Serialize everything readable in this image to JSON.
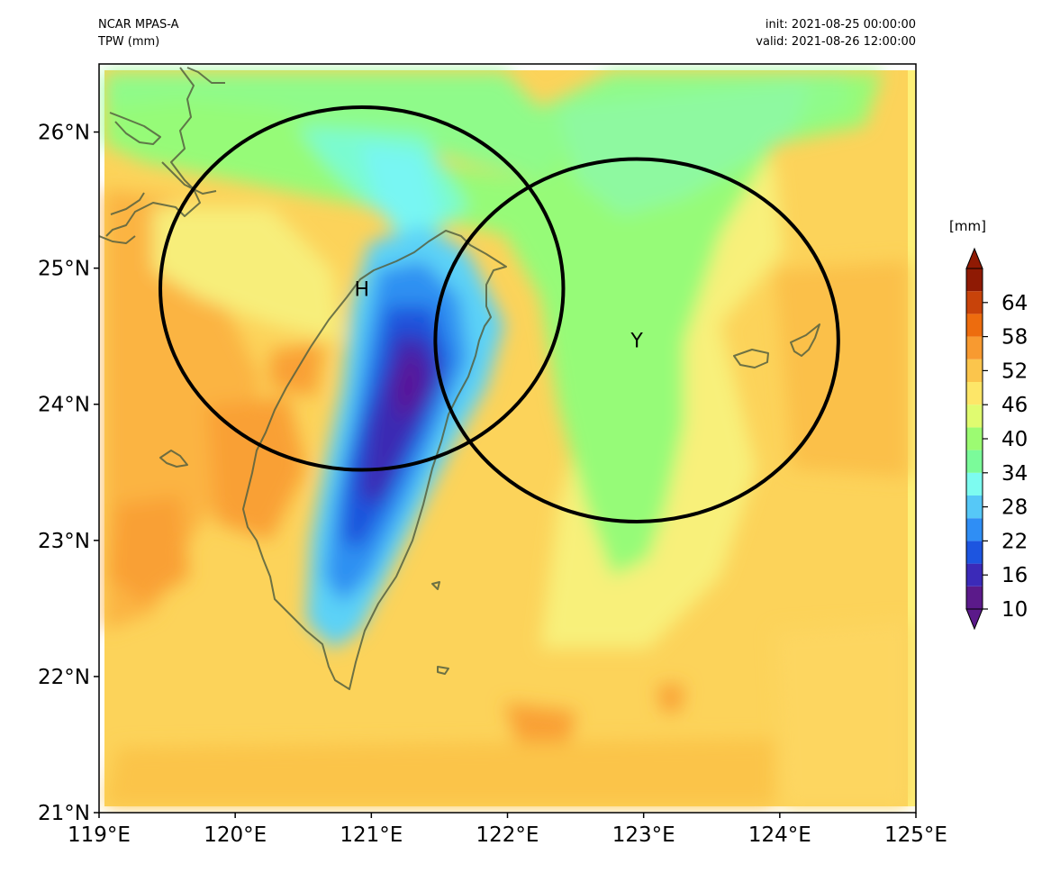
{
  "header": {
    "model": "NCAR MPAS-A",
    "variable": "TPW (mm)",
    "init": "init: 2021-08-25 00:00:00",
    "valid": "valid: 2021-08-26 12:00:00"
  },
  "map": {
    "lon_range": [
      119,
      125
    ],
    "lat_range": [
      21,
      26.5
    ],
    "lon_ticks": [
      "119°E",
      "120°E",
      "121°E",
      "122°E",
      "123°E",
      "124°E",
      "125°E"
    ],
    "lat_ticks": [
      "21°N",
      "22°N",
      "23°N",
      "24°N",
      "25°N",
      "26°N"
    ],
    "circles": [
      {
        "label": "H",
        "center_lon": 120.93,
        "center_lat": 24.85,
        "radius_deg": 1.48
      },
      {
        "label": "Y",
        "center_lon": 122.95,
        "center_lat": 24.47,
        "radius_deg": 1.48
      }
    ]
  },
  "colorbar": {
    "unit": "[mm]",
    "range": [
      10,
      70
    ],
    "tick_labels": [
      "10",
      "16",
      "22",
      "28",
      "34",
      "40",
      "46",
      "52",
      "58",
      "64"
    ],
    "colors": [
      "#5b1a8a",
      "#3b2ab8",
      "#1d55e0",
      "#2f8ef5",
      "#56c8f7",
      "#7dfbf0",
      "#7bfb9a",
      "#9cfb72",
      "#e0fb70",
      "#fde668",
      "#fbc54c",
      "#f89a30",
      "#ed6c0e",
      "#c8430a",
      "#8f1a04"
    ]
  }
}
